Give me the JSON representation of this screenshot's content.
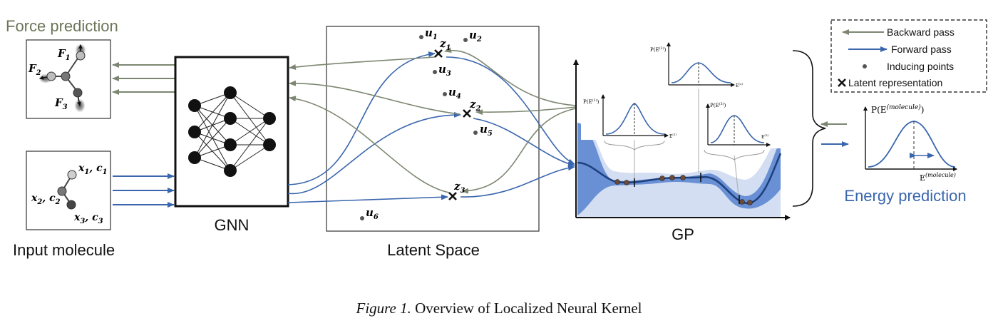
{
  "panels": {
    "force_title": "Force prediction",
    "input_title": "Input molecule",
    "gnn_title": "GNN",
    "latent_title": "Latent Space",
    "gp_title": "GP",
    "energy_title": "Energy prediction"
  },
  "force_atoms": [
    {
      "base": "F",
      "sub": "1"
    },
    {
      "base": "F",
      "sub": "2"
    },
    {
      "base": "F",
      "sub": "3"
    }
  ],
  "input_atoms": [
    {
      "a": "x",
      "as": "1",
      "b": "c",
      "bs": "1"
    },
    {
      "a": "x",
      "as": "2",
      "b": "c",
      "bs": "2"
    },
    {
      "a": "x",
      "as": "3",
      "b": "c",
      "bs": "3"
    }
  ],
  "latent_points": [
    {
      "base": "u",
      "sub": "1"
    },
    {
      "base": "u",
      "sub": "2"
    },
    {
      "base": "u",
      "sub": "3"
    },
    {
      "base": "u",
      "sub": "4"
    },
    {
      "base": "u",
      "sub": "5"
    },
    {
      "base": "u",
      "sub": "6"
    }
  ],
  "latent_reps": [
    {
      "base": "z",
      "sub": "1"
    },
    {
      "base": "z",
      "sub": "2"
    },
    {
      "base": "z",
      "sub": "3"
    }
  ],
  "gp_insets": [
    {
      "p": "P(E",
      "sup": "(1)",
      "x": "E",
      "xsup": "(1)"
    },
    {
      "p": "P(E",
      "sup": "(2)",
      "x": "E",
      "xsup": "(2)"
    },
    {
      "p": "P(E",
      "sup": "(3)",
      "x": "E",
      "xsup": "(3)"
    }
  ],
  "energy_axis": {
    "p": "P(E",
    "sup": "(molecule)",
    "x": "E",
    "xsup": "(molecule)"
  },
  "legend": {
    "backward": "Backward pass",
    "forward": "Forward pass",
    "inducing": "Inducing points",
    "latent": "Latent representation"
  },
  "colors": {
    "forward": "#3a66ad",
    "backward": "#7c8771",
    "gp_band": "#4f7ccc",
    "force_title": "#6b7558",
    "energy_title": "#3a66ad"
  },
  "caption": {
    "label": "Figure 1.",
    "text": "Overview of Localized Neural Kernel"
  }
}
